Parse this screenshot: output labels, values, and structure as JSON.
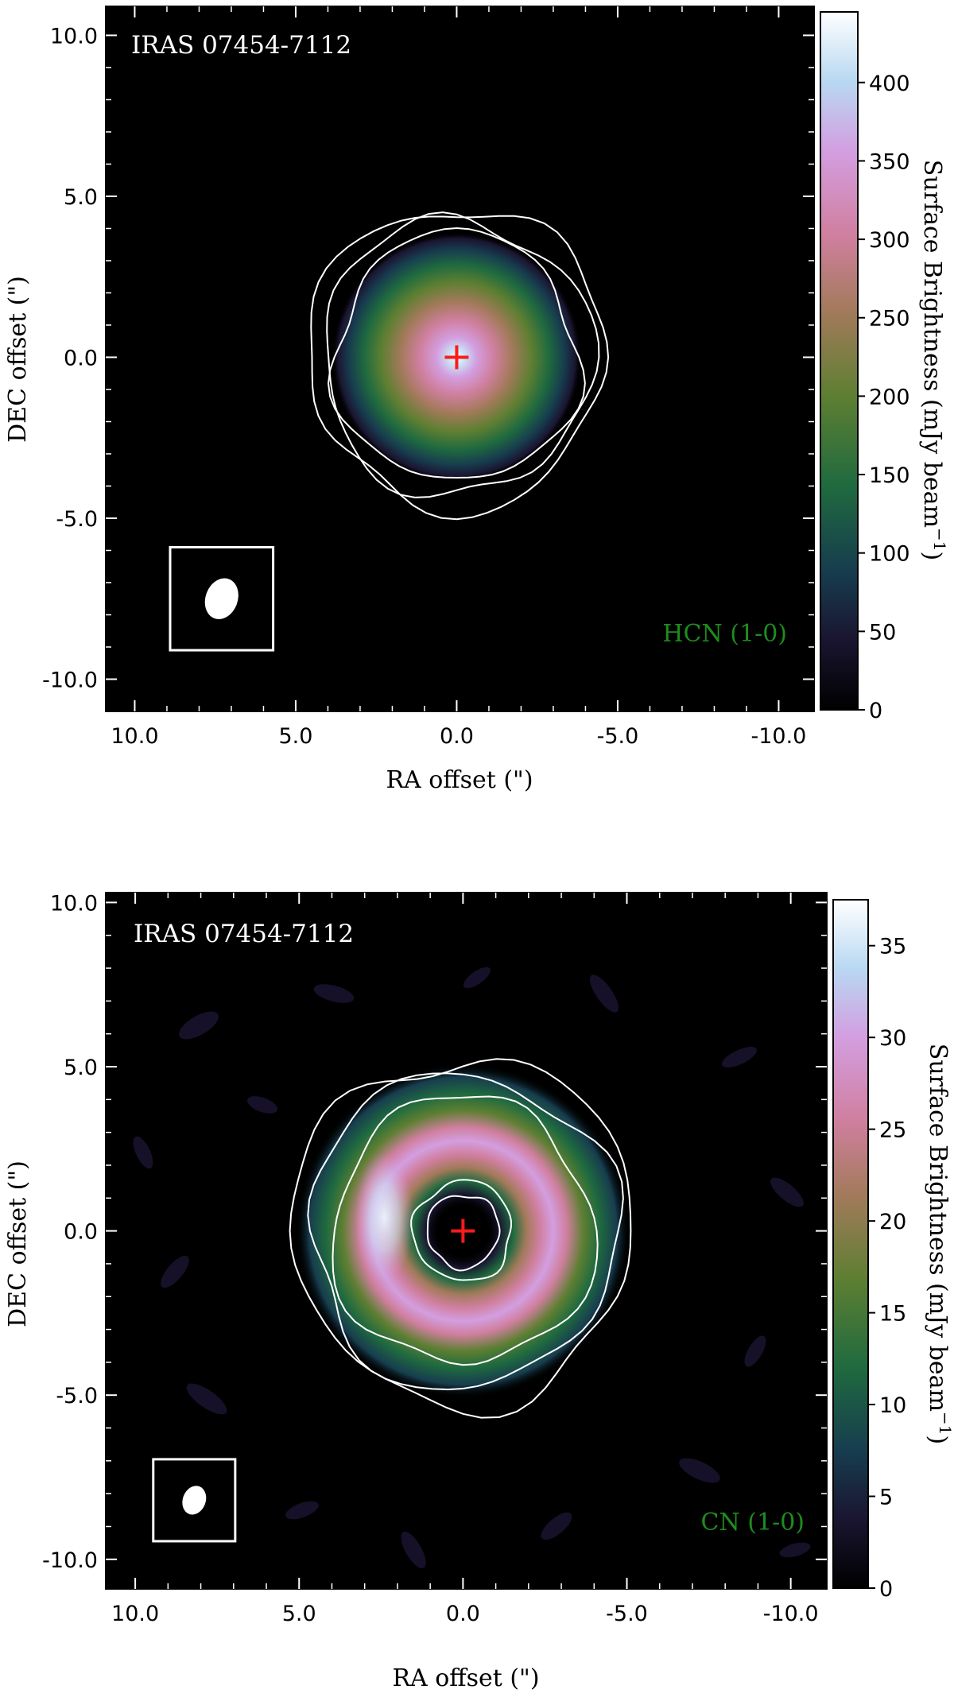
{
  "chart_data": [
    {
      "type": "heatmap",
      "object_label": "IRAS 07454-7112",
      "line_label": "HCN (1-0)",
      "xlabel": "RA offset (\")",
      "ylabel": "DEC offset (\")",
      "xlim": [
        10.9,
        -11.1
      ],
      "ylim": [
        -11.0,
        10.9
      ],
      "x_ticks": [
        10,
        5,
        0,
        -5,
        -10
      ],
      "x_tick_labels": [
        "10.0",
        "5.0",
        "0.0",
        "-5.0",
        "-10.0"
      ],
      "y_ticks": [
        10,
        5,
        0,
        -5,
        -10
      ],
      "y_tick_labels": [
        "10.0",
        "5.0",
        "0.0",
        "-5.0",
        "-10.0"
      ],
      "colorbar": {
        "label": "Surface Brightness (mJy beam",
        "label_sup": "−1",
        "label_end": ")",
        "range": [
          0,
          445
        ],
        "ticks": [
          0,
          50,
          100,
          150,
          200,
          250,
          300,
          350,
          400
        ],
        "tick_labels": [
          "0",
          "50",
          "100",
          "150",
          "200",
          "250",
          "300",
          "350",
          "400"
        ]
      },
      "emission": {
        "morphology": "centrally peaked",
        "peak": 445,
        "radius_arcsec": 3.7
      },
      "center_marker": [
        0,
        0
      ],
      "contour_radii_arcsec": [
        3.8,
        4.2,
        4.6
      ],
      "beam": {
        "x": 7.3,
        "y": -7.5,
        "major_arcsec": 1.3,
        "minor_arcsec": 1.0
      }
    },
    {
      "type": "heatmap",
      "object_label": "IRAS 07454-7112",
      "line_label": "CN (1-0)",
      "xlabel": "RA offset (\")",
      "ylabel": "DEC offset (\")",
      "xlim": [
        10.9,
        -11.1
      ],
      "ylim": [
        -10.9,
        10.3
      ],
      "x_ticks": [
        10,
        5,
        0,
        -5,
        -10
      ],
      "x_tick_labels": [
        "10.0",
        "5.0",
        "0.0",
        "-5.0",
        "-10.0"
      ],
      "y_ticks": [
        10,
        5,
        0,
        -5,
        -10
      ],
      "y_tick_labels": [
        "10.0",
        "5.0",
        "0.0",
        "-5.0",
        "-10.0"
      ],
      "colorbar": {
        "label": "Surface Brightness (mJy beam",
        "label_sup": "−1",
        "label_end": ")",
        "range": [
          0,
          37.5
        ],
        "ticks": [
          0,
          5,
          10,
          15,
          20,
          25,
          30,
          35
        ],
        "tick_labels": [
          "0",
          "5",
          "10",
          "15",
          "20",
          "25",
          "30",
          "35"
        ]
      },
      "emission": {
        "morphology": "ring",
        "peak": 37,
        "ring_radius_arcsec": 2.7,
        "ring_width_arcsec": 1.6
      },
      "center_marker": [
        0,
        0
      ],
      "contour_radii_arcsec": [
        1.1,
        1.5,
        4.0,
        4.7,
        5.2
      ],
      "beam": {
        "x": 8.2,
        "y": -8.2,
        "major_arcsec": 0.9,
        "minor_arcsec": 0.7
      }
    }
  ]
}
